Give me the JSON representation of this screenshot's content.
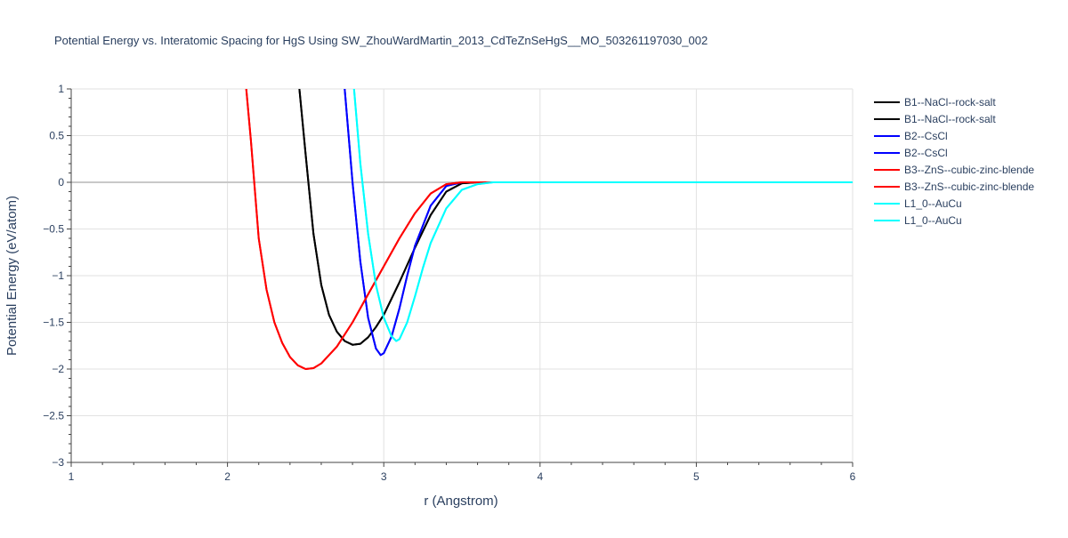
{
  "chart_data": {
    "type": "line",
    "title": "Potential Energy vs. Interatomic Spacing for HgS Using SW_ZhouWardMartin_2013_CdTeZnSeHgS__MO_503261197030_002",
    "xlabel": "r (Angstrom)",
    "ylabel": "Potential Energy (eV/atom)",
    "xlim": [
      1,
      6
    ],
    "ylim": [
      -3,
      1
    ],
    "x_ticks": [
      1,
      2,
      3,
      4,
      5,
      6
    ],
    "x_tick_labels": [
      "1",
      "2",
      "3",
      "4",
      "5",
      "6"
    ],
    "y_ticks": [
      1,
      0.5,
      0,
      -0.5,
      -1,
      -1.5,
      -2,
      -2.5,
      -3
    ],
    "y_tick_labels": [
      "1",
      "0.5",
      "0",
      "−0.5",
      "−1",
      "−1.5",
      "−2",
      "−2.5",
      "−3"
    ],
    "grid": true,
    "legend_position": "right",
    "series": [
      {
        "name": "B1--NaCl--rock-salt",
        "color": "#000000",
        "x": [
          2.46,
          2.5,
          2.55,
          2.6,
          2.65,
          2.7,
          2.75,
          2.8,
          2.85,
          2.9,
          2.95,
          3.0,
          3.1,
          3.2,
          3.3,
          3.4,
          3.5,
          3.6,
          4.0,
          5.0,
          6.0
        ],
        "y": [
          1.0,
          0.3,
          -0.55,
          -1.1,
          -1.42,
          -1.6,
          -1.7,
          -1.74,
          -1.73,
          -1.66,
          -1.55,
          -1.42,
          -1.07,
          -0.7,
          -0.35,
          -0.1,
          -0.01,
          0.0,
          0.0,
          0.0,
          0.0
        ]
      },
      {
        "name": "B1--NaCl--rock-salt",
        "color": "#000000",
        "x": [
          2.46,
          2.5,
          2.55,
          2.6,
          2.65,
          2.7,
          2.75,
          2.8,
          2.85,
          2.9,
          2.95,
          3.0,
          3.1,
          3.2,
          3.3,
          3.4,
          3.5,
          3.6,
          4.0,
          5.0,
          6.0
        ],
        "y": [
          1.0,
          0.3,
          -0.55,
          -1.1,
          -1.42,
          -1.6,
          -1.7,
          -1.74,
          -1.73,
          -1.66,
          -1.55,
          -1.42,
          -1.07,
          -0.7,
          -0.35,
          -0.1,
          -0.01,
          0.0,
          0.0,
          0.0,
          0.0
        ]
      },
      {
        "name": "B2--CsCl",
        "color": "#0000ff",
        "x": [
          2.75,
          2.8,
          2.85,
          2.9,
          2.95,
          2.98,
          3.0,
          3.05,
          3.1,
          3.15,
          3.2,
          3.3,
          3.4,
          3.5,
          3.6,
          4.0,
          5.0,
          6.0
        ],
        "y": [
          1.0,
          0.0,
          -0.85,
          -1.45,
          -1.78,
          -1.85,
          -1.83,
          -1.65,
          -1.35,
          -1.0,
          -0.68,
          -0.25,
          -0.04,
          0.0,
          0.0,
          0.0,
          0.0,
          0.0
        ]
      },
      {
        "name": "B2--CsCl",
        "color": "#0000ff",
        "x": [
          2.75,
          2.8,
          2.85,
          2.9,
          2.95,
          2.98,
          3.0,
          3.05,
          3.1,
          3.15,
          3.2,
          3.3,
          3.4,
          3.5,
          3.6,
          4.0,
          5.0,
          6.0
        ],
        "y": [
          1.0,
          0.0,
          -0.85,
          -1.45,
          -1.78,
          -1.85,
          -1.83,
          -1.65,
          -1.35,
          -1.0,
          -0.68,
          -0.25,
          -0.04,
          0.0,
          0.0,
          0.0,
          0.0,
          0.0
        ]
      },
      {
        "name": "B3--ZnS--cubic-zinc-blende",
        "color": "#ff0000",
        "x": [
          2.12,
          2.15,
          2.2,
          2.25,
          2.3,
          2.35,
          2.4,
          2.45,
          2.5,
          2.55,
          2.6,
          2.7,
          2.8,
          2.9,
          3.0,
          3.1,
          3.2,
          3.3,
          3.4,
          3.5,
          3.6,
          4.0,
          5.0,
          6.0
        ],
        "y": [
          1.0,
          0.45,
          -0.6,
          -1.15,
          -1.5,
          -1.72,
          -1.87,
          -1.96,
          -2.0,
          -1.99,
          -1.94,
          -1.76,
          -1.5,
          -1.2,
          -0.9,
          -0.6,
          -0.33,
          -0.12,
          -0.02,
          0.0,
          0.0,
          0.0,
          0.0,
          0.0
        ]
      },
      {
        "name": "B3--ZnS--cubic-zinc-blende",
        "color": "#ff0000",
        "x": [
          2.12,
          2.15,
          2.2,
          2.25,
          2.3,
          2.35,
          2.4,
          2.45,
          2.5,
          2.55,
          2.6,
          2.7,
          2.8,
          2.9,
          3.0,
          3.1,
          3.2,
          3.3,
          3.4,
          3.5,
          3.6,
          4.0,
          5.0,
          6.0
        ],
        "y": [
          1.0,
          0.45,
          -0.6,
          -1.15,
          -1.5,
          -1.72,
          -1.87,
          -1.96,
          -2.0,
          -1.99,
          -1.94,
          -1.76,
          -1.5,
          -1.2,
          -0.9,
          -0.6,
          -0.33,
          -0.12,
          -0.02,
          0.0,
          0.0,
          0.0,
          0.0,
          0.0
        ]
      },
      {
        "name": "L1_0--AuCu",
        "color": "#00ffff",
        "x": [
          2.81,
          2.85,
          2.9,
          2.95,
          3.0,
          3.05,
          3.08,
          3.1,
          3.15,
          3.2,
          3.25,
          3.3,
          3.4,
          3.5,
          3.6,
          3.7,
          4.0,
          5.0,
          6.0
        ],
        "y": [
          1.0,
          0.2,
          -0.55,
          -1.1,
          -1.45,
          -1.65,
          -1.7,
          -1.68,
          -1.5,
          -1.22,
          -0.92,
          -0.65,
          -0.28,
          -0.08,
          -0.02,
          0.0,
          0.0,
          0.0,
          0.0
        ]
      },
      {
        "name": "L1_0--AuCu",
        "color": "#00ffff",
        "x": [
          2.81,
          2.85,
          2.9,
          2.95,
          3.0,
          3.05,
          3.08,
          3.1,
          3.15,
          3.2,
          3.25,
          3.3,
          3.4,
          3.5,
          3.6,
          3.7,
          4.0,
          5.0,
          6.0
        ],
        "y": [
          1.0,
          0.2,
          -0.55,
          -1.1,
          -1.45,
          -1.65,
          -1.7,
          -1.68,
          -1.5,
          -1.22,
          -0.92,
          -0.65,
          -0.28,
          -0.08,
          -0.02,
          0.0,
          0.0,
          0.0,
          0.0
        ]
      }
    ]
  }
}
